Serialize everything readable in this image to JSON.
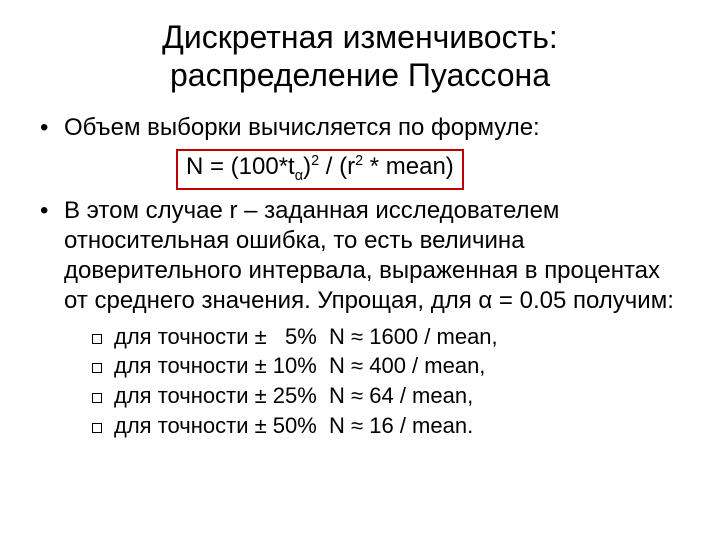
{
  "title_line1": "Дискретная изменчивость:",
  "title_line2": "распределение Пуассона",
  "bullet1": "Объем выборки вычисляется по формуле:",
  "formula": {
    "prefix": "N = (100*t",
    "sub": "α",
    "after_sub": ")",
    "sup1": "2",
    "mid": " / (r",
    "sup2": "2",
    "suffix": " * mean)"
  },
  "bullet2": "В этом случае r – заданная исследователем относительная ошибка, то есть величина доверительного интервала, выраженная в процентах от среднего значения. Упрощая, для α = 0.05 получим:",
  "sub_items": [
    "для точности ±   5%  N ≈ 1600 / mean,",
    "для точности ± 10%  N ≈ 400 / mean,",
    "для точности ± 25%  N ≈ 64 / mean,",
    "для точности ± 50%  N ≈ 16 / mean."
  ],
  "colors": {
    "formula_border": "#c00000",
    "text": "#000000",
    "background": "#ffffff"
  }
}
